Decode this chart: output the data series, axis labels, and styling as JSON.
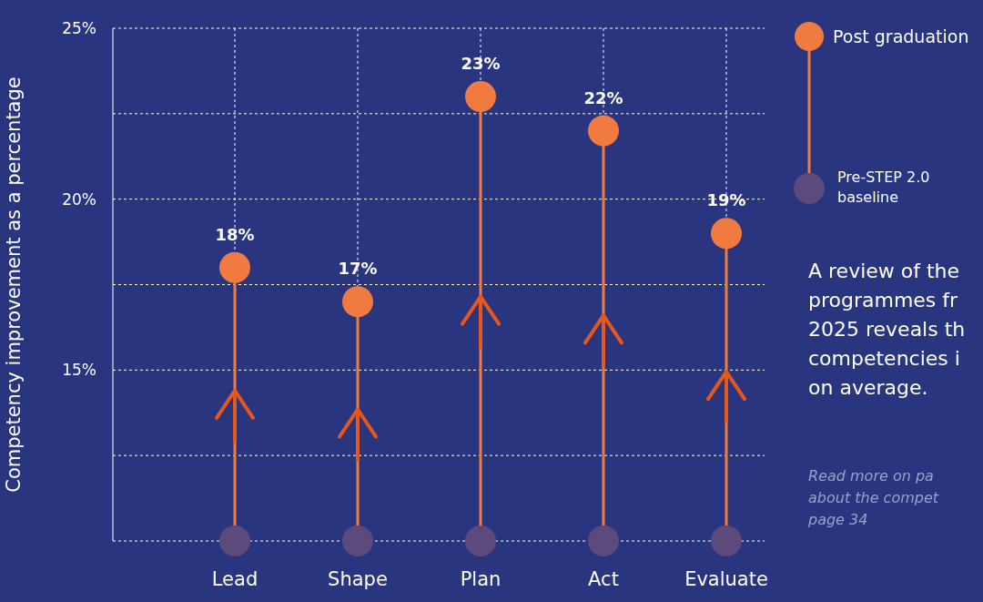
{
  "chart_data": {
    "type": "lollipop",
    "ylabel": "Competency improvement as a percentage",
    "categories": [
      "Lead",
      "Shape",
      "Plan",
      "Act",
      "Evaluate"
    ],
    "series": [
      {
        "name": "Post graduation",
        "color": "#f07a40",
        "values": [
          18,
          17,
          23,
          22,
          19
        ],
        "value_labels": [
          "18%",
          "17%",
          "23%",
          "22%",
          "19%"
        ]
      },
      {
        "name": "Pre-STEP 2.0 baseline",
        "color": "#5d4a7c",
        "values": [
          10,
          10,
          10,
          10,
          10
        ]
      }
    ],
    "ylim": [
      10,
      25
    ],
    "yticks": [
      {
        "value": 10,
        "label": null
      },
      {
        "value": 12.5,
        "label": null
      },
      {
        "value": 15,
        "label": "15%"
      },
      {
        "value": 17.5,
        "label": null
      },
      {
        "value": 20,
        "label": "20%"
      },
      {
        "value": 22.5,
        "label": null
      },
      {
        "value": 25,
        "label": "25%"
      }
    ],
    "grid": true,
    "legend": "top right",
    "annotations": [
      "A review of the\nprogrammes fr\n2025 reveals th\ncompetencies i\non average.",
      "Read more on pa\nabout the compet\npage 34"
    ]
  }
}
